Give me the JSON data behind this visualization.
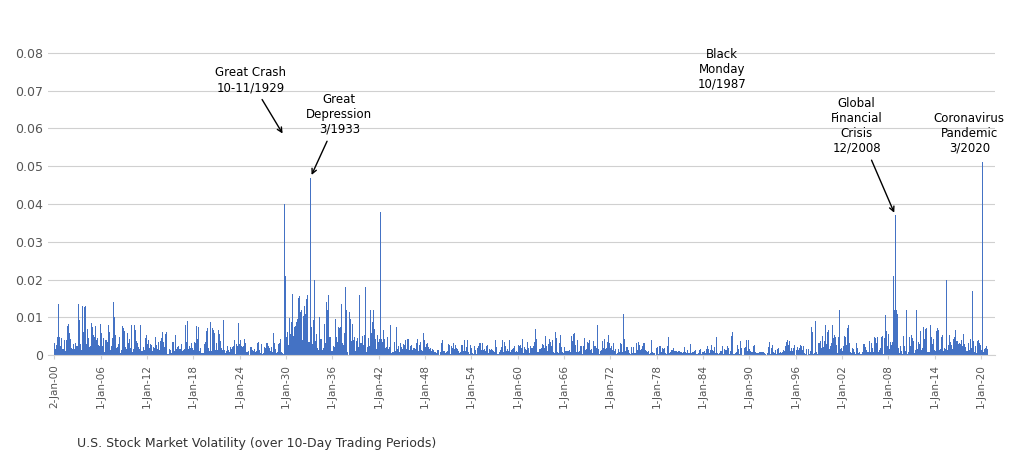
{
  "xlabel_caption": "U.S. Stock Market Volatility (over 10-Day Trading Periods)",
  "bar_color": "#4472C4",
  "background_color": "#ffffff",
  "ylim": [
    0,
    0.09
  ],
  "yticks": [
    0,
    0.01,
    0.02,
    0.03,
    0.04,
    0.05,
    0.06,
    0.07,
    0.08
  ],
  "xtick_labels": [
    "2-Jan-00",
    "1-Jan-06",
    "1-Jan-12",
    "1-Jan-18",
    "1-Jan-24",
    "1-Jan-30",
    "1-Jan-36",
    "1-Jan-42",
    "1-Jan-48",
    "1-Jan-54",
    "1-Jan-60",
    "1-Jan-66",
    "1-Jan-72",
    "1-Jan-78",
    "1-Jan-84",
    "1-Jan-90",
    "1-Jan-96",
    "1-Jan-02",
    "1-Jan-08",
    "1-Jan-14",
    "1-Jan-20"
  ],
  "n_years": 121,
  "points_per_year": 12
}
